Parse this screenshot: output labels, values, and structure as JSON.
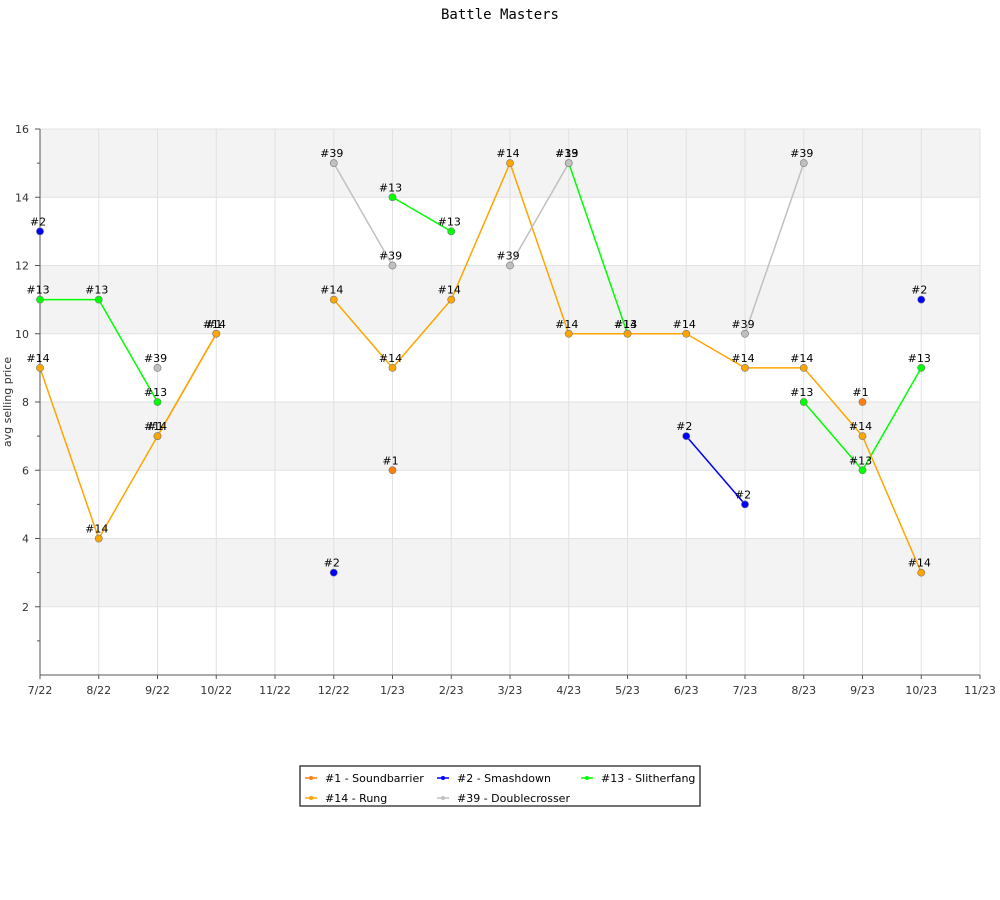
{
  "chart_data": {
    "type": "line",
    "title": "Battle Masters",
    "ylabel": "avg selling price",
    "xlabel": "",
    "ylim": [
      0,
      16
    ],
    "yticks": [
      2,
      4,
      6,
      8,
      10,
      12,
      14,
      16
    ],
    "categories": [
      "7/22",
      "8/22",
      "9/22",
      "10/22",
      "11/22",
      "12/22",
      "1/23",
      "2/23",
      "3/23",
      "4/23",
      "5/23",
      "6/23",
      "7/23",
      "8/23",
      "9/23",
      "10/23",
      "11/23"
    ],
    "grid": true,
    "legend_position": "bottom",
    "series": [
      {
        "name": "#1 - Soundbarrier",
        "point_label": "#1",
        "color": "#ff7f0e",
        "values": [
          null,
          null,
          7,
          10,
          null,
          null,
          6,
          null,
          null,
          null,
          null,
          null,
          null,
          null,
          8,
          null,
          null
        ]
      },
      {
        "name": "#2 - Smashdown",
        "point_label": "#2",
        "color": "#0000ff",
        "values": [
          13,
          null,
          null,
          null,
          null,
          3,
          null,
          null,
          null,
          null,
          null,
          7,
          5,
          null,
          null,
          11,
          null
        ]
      },
      {
        "name": "#13 - Slitherfang",
        "point_label": "#13",
        "color": "#00ff00",
        "values": [
          11,
          11,
          8,
          null,
          null,
          null,
          14,
          13,
          null,
          15,
          10,
          null,
          null,
          8,
          6,
          9,
          null
        ]
      },
      {
        "name": "#14 - Rung",
        "point_label": "#14",
        "color": "#ffa500",
        "values": [
          9,
          4,
          7,
          10,
          null,
          11,
          9,
          11,
          15,
          10,
          10,
          10,
          9,
          9,
          7,
          3,
          null
        ]
      },
      {
        "name": "#39 - Doublecrosser",
        "point_label": "#39",
        "color": "#c0c0c0",
        "values": [
          null,
          null,
          9,
          null,
          null,
          15,
          12,
          null,
          12,
          15,
          null,
          null,
          10,
          15,
          null,
          null,
          null
        ]
      }
    ]
  }
}
